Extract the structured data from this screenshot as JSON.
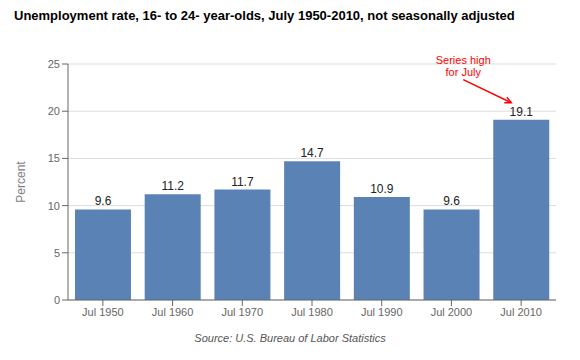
{
  "chart_data": {
    "type": "bar",
    "title": "Unemployment rate, 16- to 24- year-olds, July 1950-2010, not seasonally adjusted",
    "categories": [
      "Jul 1950",
      "Jul 1960",
      "Jul 1970",
      "Jul 1980",
      "Jul 1990",
      "Jul 2000",
      "Jul 2010"
    ],
    "values": [
      9.6,
      11.2,
      11.7,
      14.7,
      10.9,
      9.6,
      19.1
    ],
    "color": "#5b82b4",
    "ylabel": "Percent",
    "ylim": [
      0,
      25
    ],
    "yticks": [
      0,
      5,
      10,
      15,
      20,
      25
    ],
    "grid": true,
    "data_labels": true,
    "annotations": [
      {
        "text": "Series high\nfor July",
        "category": "Jul 2010",
        "color": "red"
      }
    ],
    "source": "Source: U.S. Bureau of Labor Statistics"
  }
}
